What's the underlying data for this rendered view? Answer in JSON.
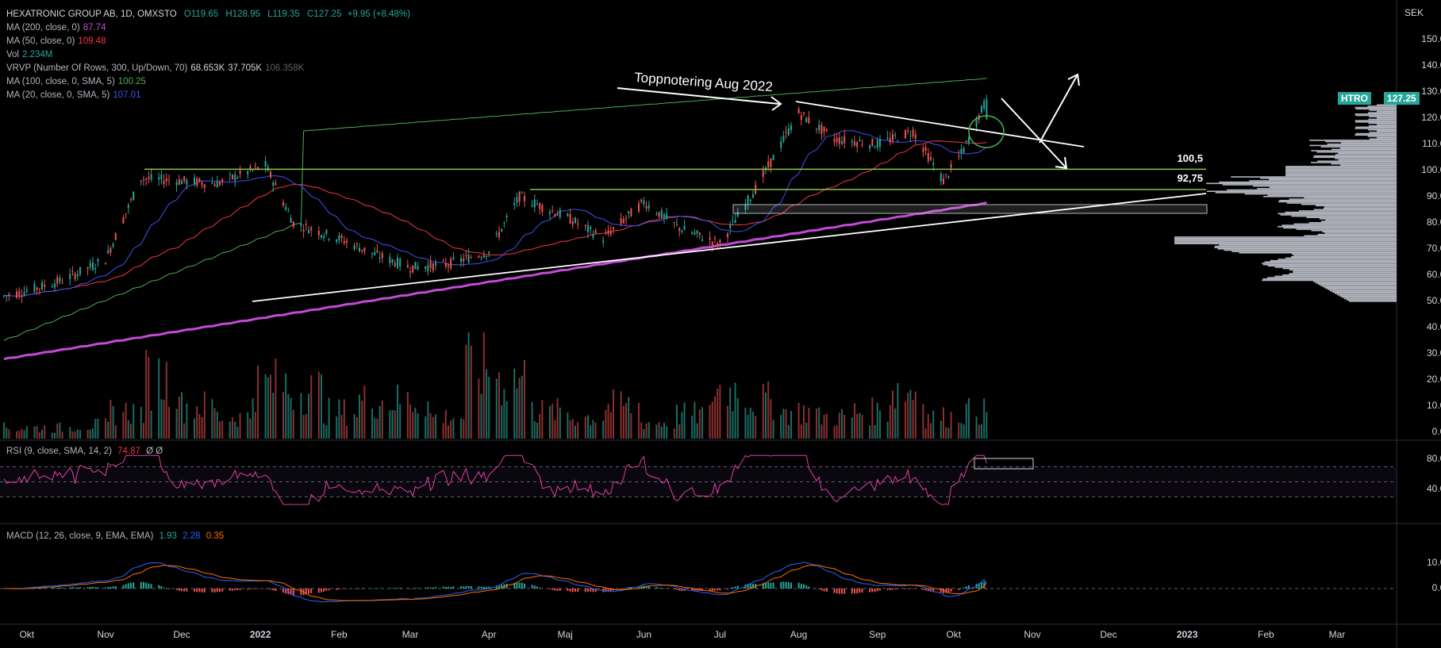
{
  "header": {
    "symbol_line": "HEXATRONIC GROUP AB, 1D, OMXSTO",
    "ohlc": {
      "o": "O119.65",
      "h": "H128.95",
      "l": "L119.35",
      "c": "C127.25",
      "chg": "+9.95 (+8.48%)"
    },
    "indicators": [
      {
        "label": "MA (200, close, 0)",
        "value": "87.74",
        "color": "#c34ad6"
      },
      {
        "label": "MA (50, close, 0)",
        "value": "109.48",
        "color": "#f23645"
      },
      {
        "label": "Vol",
        "value": "2.234M",
        "color": "#26a69a"
      },
      {
        "label": "VRVP (Number Of Rows, 300, Up/Down, 70)",
        "value": "68.653K",
        "value2": "37.705K",
        "value3": "106.358K",
        "color": "#b2b5be"
      },
      {
        "label": "MA (100, close, 0, SMA, 5)",
        "value": "100.25",
        "color": "#4caf50"
      },
      {
        "label": "MA (20, close, 0, SMA, 5)",
        "value": "107.01",
        "color": "#3f51f5"
      }
    ]
  },
  "rsi_legend": {
    "label": "RSI (9, close, SMA, 14, 2)",
    "value": "74.87",
    "extra": "Ø Ø",
    "color": "#f23645"
  },
  "macd_legend": {
    "label": "MACD (12, 26, close, 9, EMA, EMA)",
    "v1": "1.93",
    "v2": "2.28",
    "v3": "0.35",
    "c1": "#26a69a",
    "c2": "#2962ff",
    "c3": "#ff6d00"
  },
  "axis": {
    "unit": "SEK",
    "price_ticks": [
      "150.00",
      "140.00",
      "130.00",
      "120.00",
      "110.00",
      "100.00",
      "90.00",
      "80.00",
      "70.00",
      "60.00",
      "50.00",
      "40.00",
      "30.00",
      "20.00",
      "10.00",
      "0.00"
    ],
    "rsi_ticks": [
      "80.00",
      "40.00"
    ],
    "macd_ticks": [
      "10.00",
      "0.00"
    ],
    "time_ticks": [
      "Okt",
      "Nov",
      "Dec",
      "2022",
      "Feb",
      "Mar",
      "Apr",
      "Maj",
      "Jun",
      "Jul",
      "Aug",
      "Sep",
      "Okt",
      "Nov",
      "Dec",
      "2023",
      "Feb",
      "Mar"
    ]
  },
  "tags": {
    "ticker": "HTRO",
    "price": "127.25",
    "ticker_color": "#26a69a"
  },
  "annotations": {
    "top_note": "Toppnotering Aug 2022",
    "level1": "100,5",
    "level2": "92,75"
  },
  "chart_data": {
    "type": "line",
    "title": "HEXATRONIC GROUP AB, 1D, OMXSTO",
    "x": [
      "2021-09-22",
      "2021-10-01",
      "2021-10-15",
      "2021-11-01",
      "2021-11-15",
      "2021-12-01",
      "2021-12-15",
      "2022-01-03",
      "2022-01-14",
      "2022-02-01",
      "2022-02-15",
      "2022-03-01",
      "2022-03-15",
      "2022-04-01",
      "2022-04-13",
      "2022-05-02",
      "2022-05-16",
      "2022-06-01",
      "2022-06-15",
      "2022-07-01",
      "2022-07-15",
      "2022-08-01",
      "2022-08-15",
      "2022-09-01",
      "2022-09-15",
      "2022-09-27",
      "2022-10-05",
      "2022-10-14"
    ],
    "series": [
      {
        "name": "Close",
        "values": [
          52,
          54,
          58,
          66,
          97,
          96,
          95,
          102,
          80,
          74,
          68,
          63,
          64,
          69,
          90,
          82,
          74,
          88,
          78,
          72,
          93,
          122,
          112,
          110,
          115,
          96,
          108,
          127.25
        ]
      }
    ],
    "volume_values": [
      4,
      4,
      5,
      10,
      22,
      12,
      8,
      20,
      18,
      10,
      14,
      14,
      8,
      26,
      22,
      10,
      8,
      12,
      6,
      9,
      18,
      14,
      10,
      8,
      10,
      18,
      8,
      10
    ],
    "ma_latest": {
      "MA 200": 87.74,
      "MA 50": 109.48,
      "MA 100": 100.25,
      "MA 20": 107.01
    },
    "levels": [
      100.5,
      92.75
    ],
    "rsi_latest": 74.87,
    "macd_latest": {
      "macd": 1.93,
      "signal": 2.28,
      "hist": 0.35
    },
    "ylim": [
      0,
      155
    ],
    "ylabel": "SEK"
  }
}
